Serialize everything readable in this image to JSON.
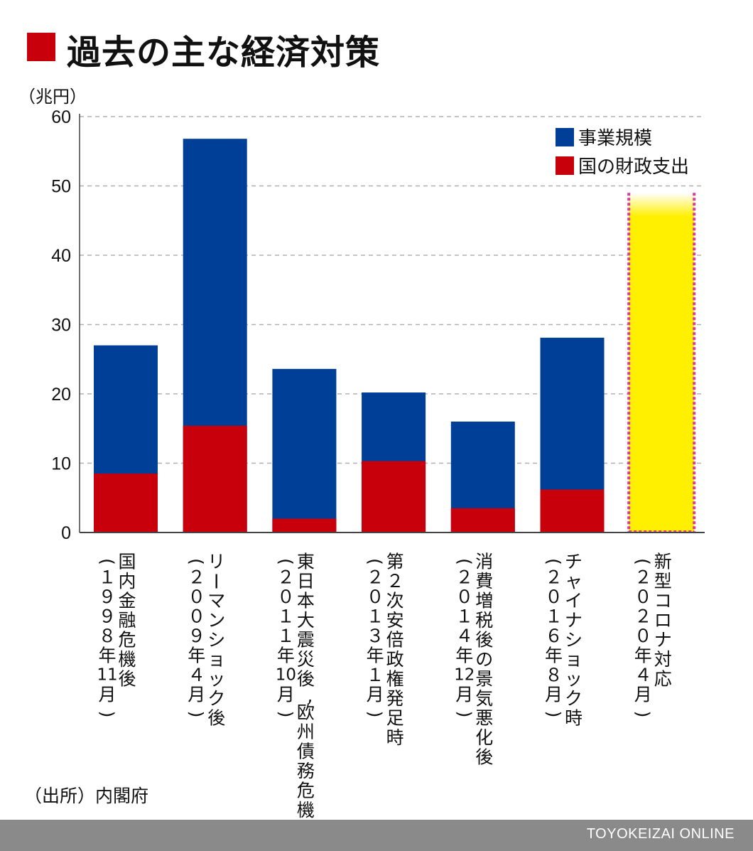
{
  "title": "過去の主な経済対策",
  "source": "（出所）内閣府",
  "footer": "TOYOKEIZAI ONLINE",
  "colors": {
    "title_mark": "#c8000b",
    "blue": "#003f98",
    "red": "#c8000b",
    "yellow": "#fff000",
    "highlight_border": "#e2379a",
    "grid": "#b0b0b0",
    "footer_bg": "#8a8a8a"
  },
  "chart_data": {
    "type": "bar",
    "stacked": false,
    "overlapping": true,
    "yunit_label": "（兆円）",
    "ylim": [
      0,
      60
    ],
    "yticks": [
      "0",
      "10",
      "20",
      "30",
      "40",
      "50",
      "60"
    ],
    "grid": true,
    "legend_position": "top-right",
    "categories": [
      "国内金融危機後（１９９８年11月）",
      "リーマンショック後（２００９年４月）",
      "東日本大震災後、欧州債務危機（２０１１年10月）",
      "第２次安倍政権発足時（２０１３年１月）",
      "消費増税後の景気悪化後（２０１４年12月）",
      "チャイナショック時（２０１６年８月）",
      "新型コロナ対応（２０２０年４月）"
    ],
    "category_lines": [
      [
        "国内金融危機後",
        "（１９９８年11月）"
      ],
      [
        "リーマンショック後",
        "（２００９年４月）"
      ],
      [
        "東日本大震災後、欧州債務危機",
        "（２０１１年10月）"
      ],
      [
        "第２次安倍政権発足時",
        "（２０１３年１月）"
      ],
      [
        "消費増税後の景気悪化後",
        "（２０１４年12月）"
      ],
      [
        "チャイナショック時",
        "（２０１６年８月）"
      ],
      [
        "新型コロナ対応",
        "（２０２０年４月）"
      ]
    ],
    "series": [
      {
        "name": "事業規模",
        "color": "#003f98",
        "values": [
          27,
          56.8,
          23.6,
          20.2,
          16,
          28.1,
          null
        ]
      },
      {
        "name": "国の財政支出",
        "color": "#c8000b",
        "values": [
          8.5,
          15.4,
          2,
          10.3,
          3.5,
          6.2,
          null
        ]
      }
    ],
    "highlight": {
      "category_index": 6,
      "fill": "#fff000",
      "border": "#e2379a",
      "approx_value": 49
    }
  }
}
